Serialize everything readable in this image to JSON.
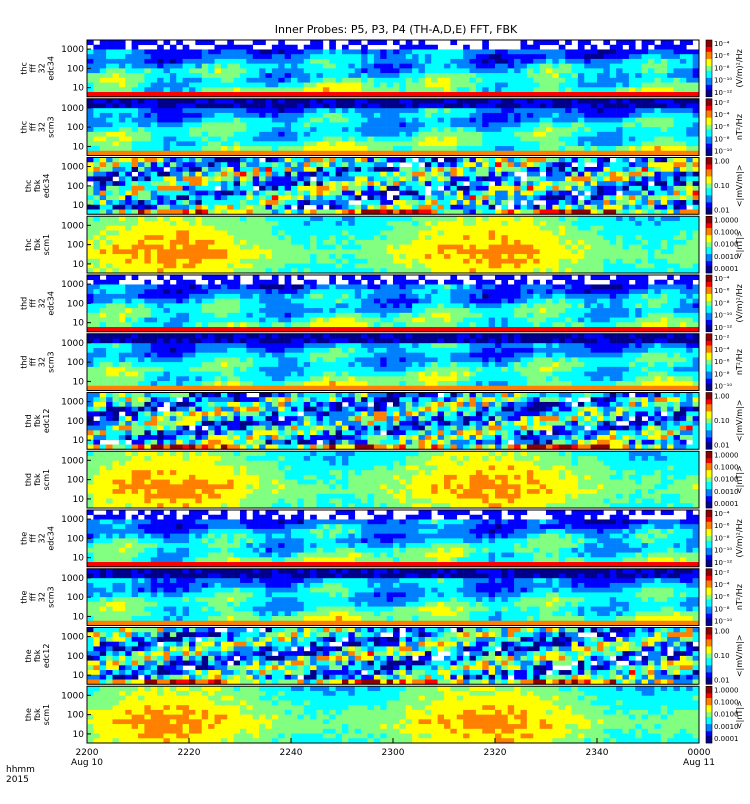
{
  "title": "Inner Probes: P5, P3, P4 (TH-A,D,E) FFT, FBK",
  "time_axis": {
    "corner_label_1": "hhmm",
    "corner_label_2": "2015",
    "ticks": [
      {
        "label": "2200",
        "sublabel": "Aug 10",
        "t": 0
      },
      {
        "label": "2220",
        "sublabel": "",
        "t": 20
      },
      {
        "label": "2240",
        "sublabel": "",
        "t": 40
      },
      {
        "label": "2300",
        "sublabel": "",
        "t": 60
      },
      {
        "label": "2320",
        "sublabel": "",
        "t": 80
      },
      {
        "label": "2340",
        "sublabel": "",
        "t": 100
      },
      {
        "label": "0000",
        "sublabel": "Aug 11",
        "t": 120
      }
    ],
    "range_minutes": [
      0,
      120
    ]
  },
  "chart_data": {
    "type": "heatmap",
    "description_of_axes": "time (hhmm, 2015-08-10 22:00 to 2015-08-11 00:00) vs frequency (Hz, log scale)",
    "panels": [
      {
        "ylabel": [
          "thc",
          "fff",
          "32",
          "edc34"
        ],
        "yticks": [
          "1000",
          "100",
          "10"
        ],
        "cbar_label": "(V/m)²/Hz",
        "cbar_ticks": [
          "10⁻⁴",
          "10⁻⁶",
          "10⁻⁸",
          "10⁻¹⁰",
          "10⁻¹²"
        ],
        "kind": "fff_e"
      },
      {
        "ylabel": [
          "thc",
          "fff",
          "32",
          "scm3"
        ],
        "yticks": [
          "1000",
          "100",
          "10"
        ],
        "cbar_label": "nT²/Hz",
        "cbar_ticks": [
          "10⁻²",
          "10⁻⁴",
          "10⁻⁶",
          "10⁻⁸",
          "10⁻¹⁰"
        ],
        "kind": "fff_b"
      },
      {
        "ylabel": [
          "thc",
          "fbk",
          "edc34"
        ],
        "yticks": [
          "1000",
          "100",
          "10"
        ],
        "cbar_label": "<|mV/m|>",
        "cbar_ticks": [
          "1.00",
          "0.10",
          "0.01"
        ],
        "kind": "fbk_e"
      },
      {
        "ylabel": [
          "thc",
          "fbk",
          "scm1"
        ],
        "yticks": [
          "1000",
          "100",
          "10"
        ],
        "cbar_label": "<|nT|>",
        "cbar_ticks": [
          "1.0000",
          "0.1000",
          "0.0100",
          "0.0010",
          "0.0001"
        ],
        "kind": "fbk_b"
      },
      {
        "ylabel": [
          "thd",
          "fff",
          "32",
          "edc34"
        ],
        "yticks": [
          "1000",
          "100",
          "10"
        ],
        "cbar_label": "(V/m)²/Hz",
        "cbar_ticks": [
          "10⁻⁴",
          "10⁻⁶",
          "10⁻⁸",
          "10⁻¹⁰",
          "10⁻¹²"
        ],
        "kind": "fff_e"
      },
      {
        "ylabel": [
          "thd",
          "fff",
          "32",
          "scm3"
        ],
        "yticks": [
          "1000",
          "100",
          "10"
        ],
        "cbar_label": "nT²/Hz",
        "cbar_ticks": [
          "10⁻²",
          "10⁻⁴",
          "10⁻⁶",
          "10⁻⁸",
          "10⁻¹⁰"
        ],
        "kind": "fff_b"
      },
      {
        "ylabel": [
          "thd",
          "fbk",
          "edc12"
        ],
        "yticks": [
          "1000",
          "100",
          "10"
        ],
        "cbar_label": "<|mV/m|>",
        "cbar_ticks": [
          "1.00",
          "0.10",
          "0.01"
        ],
        "kind": "fbk_e"
      },
      {
        "ylabel": [
          "thd",
          "fbk",
          "scm1"
        ],
        "yticks": [
          "1000",
          "100",
          "10"
        ],
        "cbar_label": "<|nT|>",
        "cbar_ticks": [
          "1.0000",
          "0.1000",
          "0.0100",
          "0.0010",
          "0.0001"
        ],
        "kind": "fbk_b"
      },
      {
        "ylabel": [
          "the",
          "fff",
          "32",
          "edc34"
        ],
        "yticks": [
          "1000",
          "100",
          "10"
        ],
        "cbar_label": "(V/m)²/Hz",
        "cbar_ticks": [
          "10⁻⁴",
          "10⁻⁶",
          "10⁻⁸",
          "10⁻¹⁰",
          "10⁻¹²"
        ],
        "kind": "fff_e"
      },
      {
        "ylabel": [
          "the",
          "fff",
          "32",
          "scm3"
        ],
        "yticks": [
          "1000",
          "100",
          "10"
        ],
        "cbar_label": "nT²/Hz",
        "cbar_ticks": [
          "10⁻²",
          "10⁻⁴",
          "10⁻⁶",
          "10⁻⁸",
          "10⁻¹⁰"
        ],
        "kind": "fff_b"
      },
      {
        "ylabel": [
          "the",
          "fbk",
          "edc12"
        ],
        "yticks": [
          "1000",
          "100",
          "10"
        ],
        "cbar_label": "<|mV/m|>",
        "cbar_ticks": [
          "1.00",
          "0.10",
          "0.01"
        ],
        "kind": "fbk_e"
      },
      {
        "ylabel": [
          "the",
          "fbk",
          "scm1"
        ],
        "yticks": [
          "1000",
          "100",
          "10"
        ],
        "cbar_label": "<|nT|>",
        "cbar_ticks": [
          "1.0000",
          "0.1000",
          "0.0100",
          "0.0010",
          "0.0001"
        ],
        "kind": "fbk_b"
      }
    ],
    "colormap": [
      "#00008b",
      "#0000ff",
      "#0080ff",
      "#00ffff",
      "#80ff80",
      "#ffff00",
      "#ff8000",
      "#ff0000",
      "#8b0000"
    ]
  }
}
